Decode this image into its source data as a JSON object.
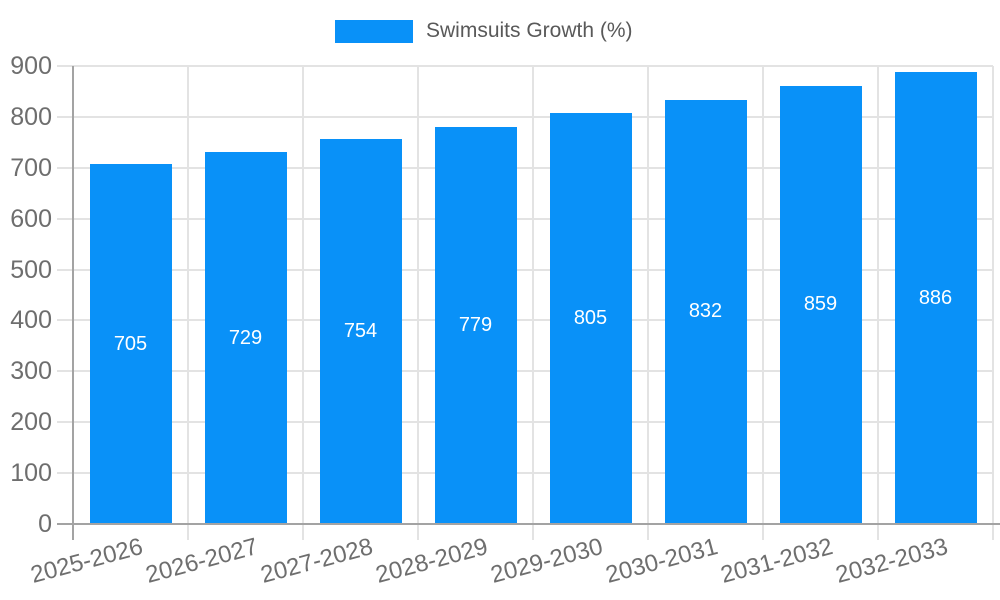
{
  "chart_data": {
    "type": "bar",
    "title": "",
    "legend_label": "Swimsuits Growth (%)",
    "legend_position": "top",
    "categories": [
      "2025-2026",
      "2026-2027",
      "2027-2028",
      "2028-2029",
      "2029-2030",
      "2030-2031",
      "2031-2032",
      "2032-2033"
    ],
    "series": [
      {
        "name": "Swimsuits Growth (%)",
        "values": [
          705,
          729,
          754,
          779,
          805,
          832,
          859,
          886
        ]
      }
    ],
    "xlabel": "",
    "ylabel": "",
    "ylim": [
      0,
      900
    ],
    "ytick_step": 100,
    "ytick_labels": [
      "0",
      "100",
      "200",
      "300",
      "400",
      "500",
      "600",
      "700",
      "800",
      "900"
    ],
    "grid": true,
    "value_labels_inside_bars": true,
    "x_label_rotation_deg": -15,
    "colors": {
      "bar": "#0991f8",
      "gridline": "#e3e3e3",
      "axis_line": "#a3a3a3",
      "axis_label_text": "#6e6e6e",
      "legend_text": "#595959",
      "bar_value_text": "#ffffff",
      "background": "#ffffff"
    }
  }
}
